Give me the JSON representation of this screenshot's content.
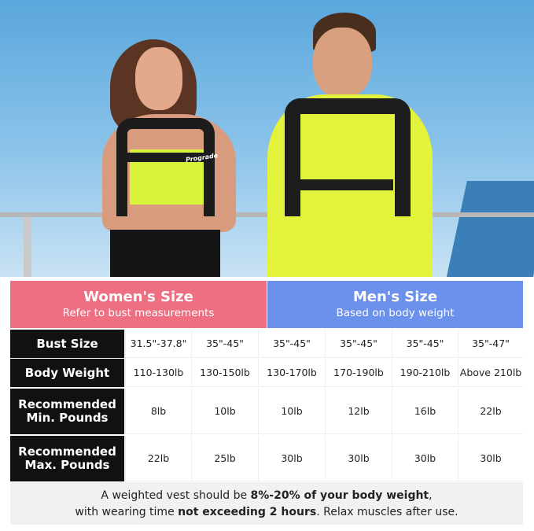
{
  "header": {
    "women": {
      "title": "Women's Size",
      "subtitle": "Refer to bust measurements",
      "color": "#ee6e82"
    },
    "men": {
      "title": "Men's Size",
      "subtitle": "Based on body weight",
      "color": "#6c91ec"
    }
  },
  "rows": [
    {
      "label": "Bust Size",
      "values": [
        "31.5\"-37.8\"",
        "35\"-45\"",
        "35\"-45\"",
        "35\"-45\"",
        "35\"-45\"",
        "35\"-47\""
      ]
    },
    {
      "label": "Body Weight",
      "values": [
        "110-130lb",
        "130-150lb",
        "130-170lb",
        "170-190lb",
        "190-210lb",
        "Above 210lb"
      ]
    },
    {
      "label": "Recommended Min. Pounds",
      "values": [
        "8lb",
        "10lb",
        "10lb",
        "12lb",
        "16lb",
        "22lb"
      ]
    },
    {
      "label": "Recommended Max. Pounds",
      "values": [
        "22lb",
        "25lb",
        "30lb",
        "30lb",
        "30lb",
        "30lb"
      ]
    }
  ],
  "footer": {
    "l1a": "A weighted vest should be ",
    "l1b": "8%-20% of your body weight",
    ",": ",",
    "l2a": "with wearing time ",
    "l2b": "not exceeding 2 hours",
    "l2c": ". Relax muscles after use."
  },
  "photo": {
    "vest_brand": "Prograde"
  }
}
